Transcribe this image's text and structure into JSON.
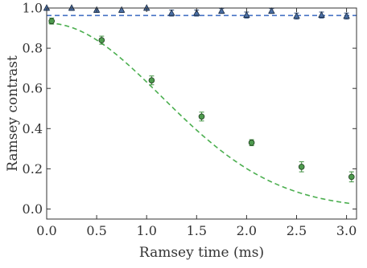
{
  "chart_data": {
    "type": "scatter",
    "title": "",
    "xlabel": "Ramsey time (ms)",
    "ylabel": "Ramsey contrast",
    "xlim": [
      0.0,
      3.1
    ],
    "ylim": [
      -0.05,
      1.0
    ],
    "x_ticks": [
      "0.0",
      "0.5",
      "1.0",
      "1.5",
      "2.0",
      "2.5",
      "3.0"
    ],
    "y_ticks": [
      "0.0",
      "0.2",
      "0.4",
      "0.6",
      "0.8",
      "1.0"
    ],
    "grid": false,
    "legend": "none",
    "series": [
      {
        "marker": "triangle",
        "color": "#2f4f7f",
        "x": [
          0.0,
          0.25,
          0.5,
          0.75,
          1.0,
          1.25,
          1.5,
          1.75,
          2.0,
          2.25,
          2.5,
          2.75,
          3.0
        ],
        "y": [
          1.0,
          1.0,
          0.99,
          0.99,
          1.0,
          0.975,
          0.975,
          0.985,
          0.965,
          0.985,
          0.96,
          0.965,
          0.96
        ],
        "err": [
          0.012,
          0.012,
          0.012,
          0.012,
          0.012,
          0.015,
          0.015,
          0.012,
          0.015,
          0.012,
          0.015,
          0.015,
          0.015
        ],
        "fit": {
          "kind": "constant",
          "color": "#4472c4",
          "value": 0.963
        }
      },
      {
        "marker": "circle",
        "color": "#3f8f3f",
        "x": [
          0.05,
          0.55,
          1.05,
          1.55,
          2.05,
          2.55,
          3.05
        ],
        "y": [
          0.935,
          0.84,
          0.64,
          0.46,
          0.33,
          0.21,
          0.16
        ],
        "err": [
          0.015,
          0.02,
          0.022,
          0.022,
          0.015,
          0.025,
          0.025
        ],
        "fit": {
          "kind": "gaussian",
          "color": "#4caf50",
          "amplitude": 0.925,
          "width": 1.62
        }
      }
    ]
  }
}
